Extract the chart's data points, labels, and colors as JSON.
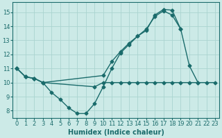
{
  "bg_color": "#cceae7",
  "grid_color": "#aad4d0",
  "line_color": "#1a6b6b",
  "line_width": 1.0,
  "marker": "D",
  "marker_size": 2.5,
  "xlabel": "Humidex (Indice chaleur)",
  "xlabel_fontsize": 7,
  "tick_fontsize": 6,
  "ylim": [
    7.5,
    15.7
  ],
  "xlim": [
    -0.5,
    23.5
  ],
  "yticks": [
    8,
    9,
    10,
    11,
    12,
    13,
    14,
    15
  ],
  "xticks": [
    0,
    1,
    2,
    3,
    4,
    5,
    6,
    7,
    8,
    9,
    10,
    11,
    12,
    13,
    14,
    15,
    16,
    17,
    18,
    19,
    20,
    21,
    22,
    23
  ],
  "curve1_x": [
    0,
    1,
    2,
    3,
    4,
    5,
    6,
    7,
    8,
    9,
    10,
    11,
    12,
    13,
    14,
    15,
    16,
    17,
    18,
    19
  ],
  "curve1_y": [
    11,
    10.4,
    10.3,
    10.0,
    9.3,
    8.8,
    8.2,
    7.8,
    7.8,
    8.5,
    9.7,
    11.0,
    12.1,
    12.7,
    13.3,
    13.7,
    14.8,
    15.2,
    15.15,
    13.8
  ],
  "curve2_x": [
    0,
    1,
    2,
    3,
    9,
    10,
    11,
    12,
    13,
    14,
    15,
    16,
    17,
    18,
    19,
    20,
    21,
    22,
    23
  ],
  "curve2_y": [
    11,
    10.4,
    10.3,
    10.0,
    9.7,
    10.0,
    10.0,
    10.0,
    10.0,
    10.0,
    10.0,
    10.0,
    10.0,
    10.0,
    10.0,
    10.0,
    10.0,
    10.0,
    10.0
  ],
  "curve3_x": [
    0,
    1,
    2,
    3,
    10,
    11,
    12,
    13,
    14,
    15,
    16,
    17,
    18,
    19,
    20,
    21
  ],
  "curve3_y": [
    11,
    10.4,
    10.3,
    10.0,
    10.5,
    11.5,
    12.2,
    12.8,
    13.3,
    13.8,
    14.7,
    15.1,
    14.8,
    13.8,
    11.2,
    10.0
  ]
}
